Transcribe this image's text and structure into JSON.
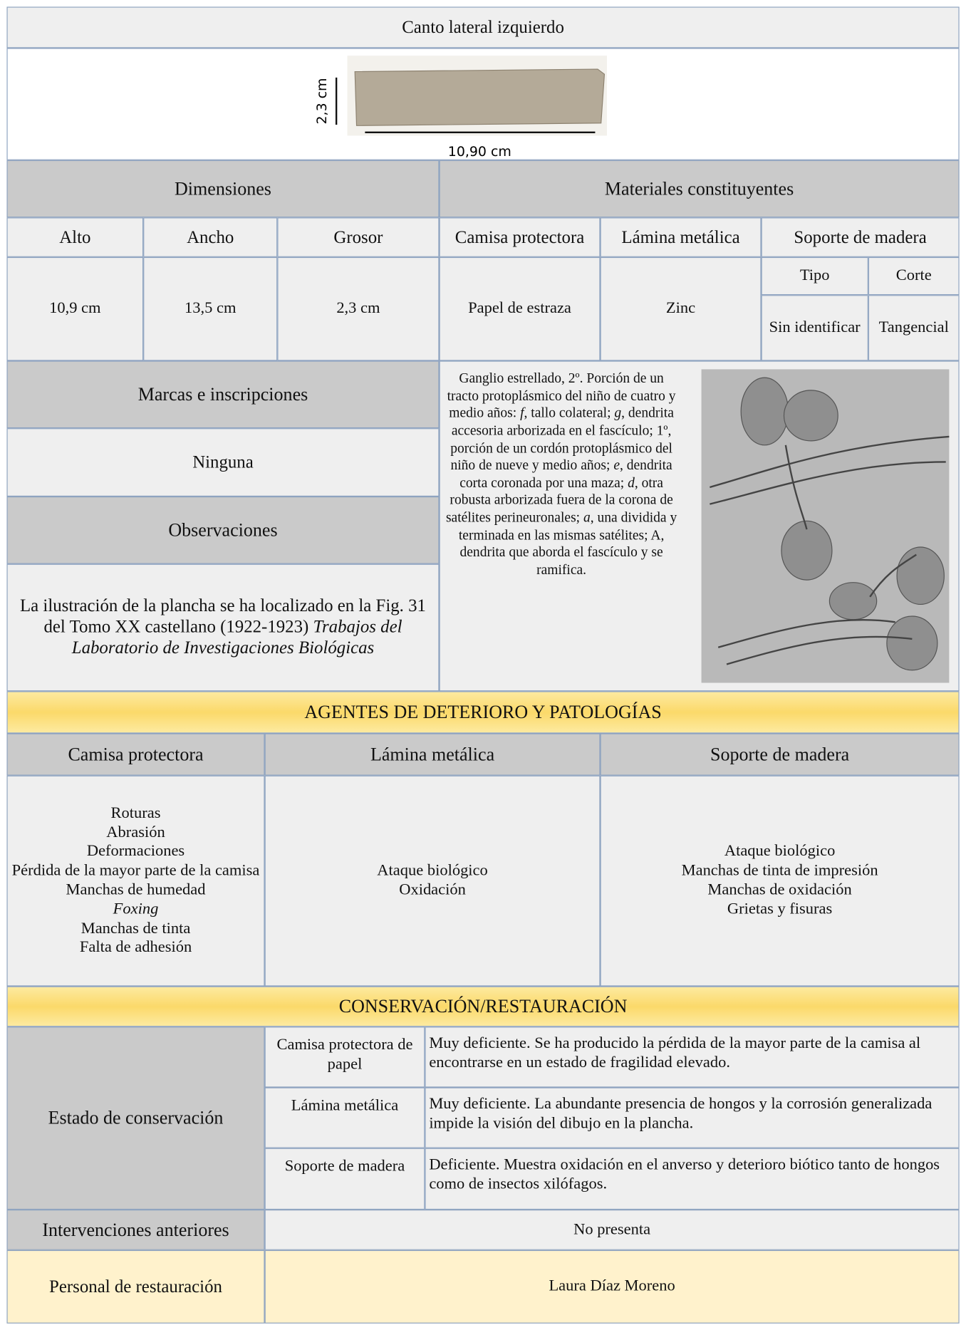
{
  "title": "Canto lateral izquierdo",
  "image": {
    "height_label": "2,3 cm",
    "width_label": "10,90 cm"
  },
  "dimensions": {
    "header": "Dimensiones",
    "columns": [
      "Alto",
      "Ancho",
      "Grosor"
    ],
    "values": [
      "10,9 cm",
      "13,5 cm",
      "2,3 cm"
    ]
  },
  "materials": {
    "header": "Materiales constituyentes",
    "columns": [
      "Camisa protectora",
      "Lámina metálica",
      "Soporte de madera"
    ],
    "values": [
      "Papel de estraza",
      "Zinc"
    ],
    "support_columns": [
      "Tipo",
      "Corte"
    ],
    "support_values": [
      "Sin identificar",
      "Tangencial"
    ]
  },
  "marks": {
    "header": "Marcas e inscripciones",
    "value": "Ninguna"
  },
  "observations": {
    "header": "Observaciones",
    "text": [
      "La ilustración de la plancha se ha localizado en la Fig. 31 del Tomo XX castellano (1922-1923)",
      "Trabajos del Laboratorio de Investigaciones Biológicas"
    ]
  },
  "caption": [
    "Ganglio estrellado, 2º. Porción de un tracto protoplásmico del niño de cuatro y medio años:",
    "f",
    ", tallo colateral;",
    "g",
    ", dendrita accesoria arborizada en el fascículo; 1º, porción de un cordón protoplásmico del niño de nueve y medio años;",
    "e",
    ", dendrita corta coronada por una maza;",
    "d",
    ", otra robusta arborizada fuera de la corona de satélites perineuronales;",
    "a",
    ", una dividida y terminada en las mismas satélites; A, dendrita que aborda el fascículo y se ramifica."
  ],
  "deterioration": {
    "title": "AGENTES DE DETERIORO Y PATOLOGÍAS",
    "columns": [
      "Camisa protectora",
      "Lámina metálica",
      "Soporte de madera"
    ],
    "items": [
      [
        "Roturas",
        "Abrasión",
        "Deformaciones",
        "Pérdida de la mayor parte de la camisa",
        "Manchas de humedad",
        "Foxing",
        "Manchas de tinta",
        "Falta de adhesión"
      ],
      [
        "Ataque biológico",
        "Oxidación"
      ],
      [
        "Ataque biológico",
        "Manchas de tinta de impresión",
        "Manchas de oxidación",
        "Grietas y fisuras"
      ]
    ]
  },
  "conservation": {
    "title": "CONSERVACIÓN/RESTAURACIÓN",
    "state_header": "Estado de conservación",
    "states": [
      [
        "Camisa protectora de papel",
        "Muy deficiente. Se ha producido la pérdida de la mayor parte de la camisa al encontrarse en un estado de fragilidad elevado."
      ],
      [
        "Lámina metálica",
        "Muy deficiente. La abundante presencia de hongos y la corrosión generalizada impide la visión del dibujo en la plancha."
      ],
      [
        "Soporte de madera",
        "Deficiente. Muestra oxidación en el anverso y deterioro biótico tanto de hongos como de insectos xilófagos."
      ]
    ],
    "previous_header": "Intervenciones anteriores",
    "previous": "No presenta",
    "staff_header": "Personal de restauración",
    "staff": "Laura Díaz Moreno"
  }
}
